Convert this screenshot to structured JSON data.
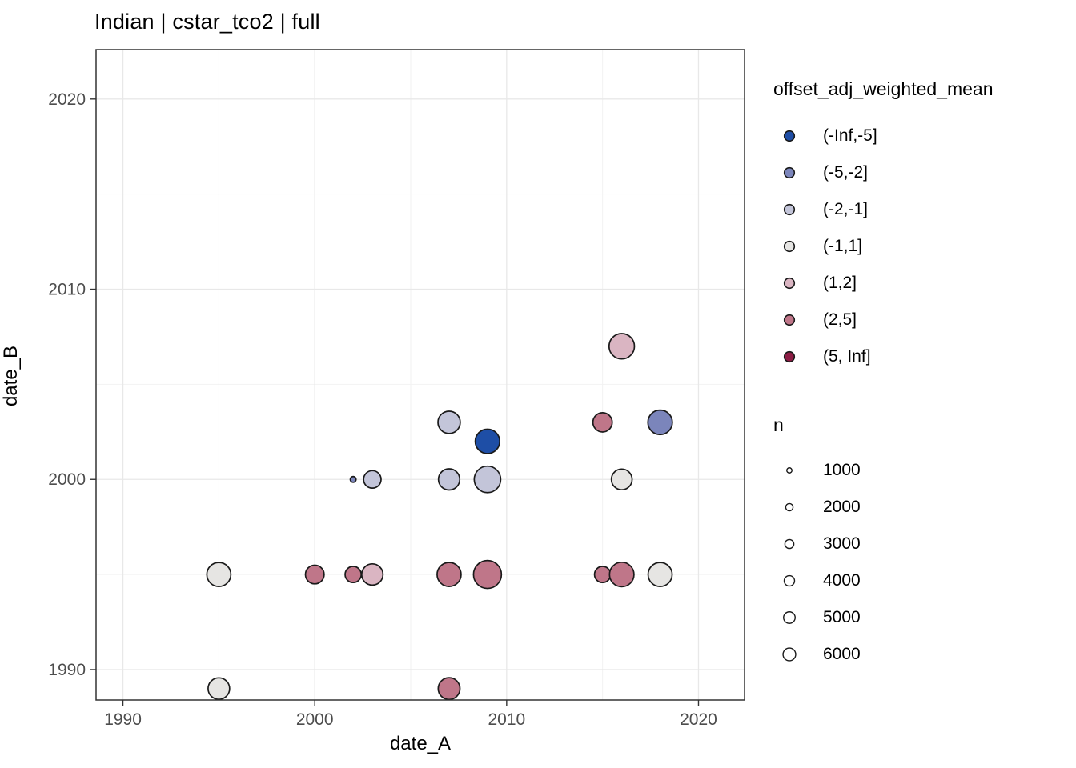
{
  "title": "Indian | cstar_tco2 | full",
  "chart_data": {
    "type": "scatter",
    "title": "Indian | cstar_tco2 | full",
    "xlabel": "date_A",
    "ylabel": "date_B",
    "xlim": [
      1988.6,
      2022.4
    ],
    "ylim": [
      1988.4,
      2022.6
    ],
    "x_major_ticks": [
      1990,
      2000,
      2010,
      2020
    ],
    "y_major_ticks": [
      1990,
      2000,
      2010,
      2020
    ],
    "x_minor_ticks": [
      1995,
      2005,
      2015
    ],
    "y_minor_ticks": [
      1995,
      2005,
      2015
    ],
    "grid": true,
    "legend_position": "right",
    "color_legend": {
      "title": "offset_adj_weighted_mean",
      "bins": [
        {
          "label": "(-Inf,-5]",
          "color": "#1e4ea6"
        },
        {
          "label": "(-5,-2]",
          "color": "#7b85bb"
        },
        {
          "label": "(-2,-1]",
          "color": "#c3c5d9"
        },
        {
          "label": "(-1,1]",
          "color": "#e6e5e3"
        },
        {
          "label": "(1,2]",
          "color": "#dab5c2"
        },
        {
          "label": "(2,5]",
          "color": "#bf7689"
        },
        {
          "label": "(5, Inf]",
          "color": "#8c1c44"
        }
      ]
    },
    "size_legend": {
      "title": "n",
      "values": [
        1000,
        2000,
        3000,
        4000,
        5000,
        6000
      ]
    },
    "points": [
      {
        "date_A": 1995,
        "date_B": 1989,
        "bin": "(-1,1]",
        "n": 4100
      },
      {
        "date_A": 2007,
        "date_B": 1989,
        "bin": "(2,5]",
        "n": 4200
      },
      {
        "date_A": 1995,
        "date_B": 1995,
        "bin": "(-1,1]",
        "n": 5100
      },
      {
        "date_A": 2000,
        "date_B": 1995,
        "bin": "(2,5]",
        "n": 3100
      },
      {
        "date_A": 2002,
        "date_B": 1995,
        "bin": "(2,5]",
        "n": 2300
      },
      {
        "date_A": 2003,
        "date_B": 1995,
        "bin": "(1,2]",
        "n": 4000
      },
      {
        "date_A": 2007,
        "date_B": 1995,
        "bin": "(2,5]",
        "n": 5100
      },
      {
        "date_A": 2009,
        "date_B": 1995,
        "bin": "(2,5]",
        "n": 6900
      },
      {
        "date_A": 2015,
        "date_B": 1995,
        "bin": "(2,5]",
        "n": 2300
      },
      {
        "date_A": 2016,
        "date_B": 1995,
        "bin": "(2,5]",
        "n": 5300
      },
      {
        "date_A": 2018,
        "date_B": 1995,
        "bin": "(-1,1]",
        "n": 5100
      },
      {
        "date_A": 2002,
        "date_B": 2000,
        "bin": "(-5,-2]",
        "n": 300
      },
      {
        "date_A": 2003,
        "date_B": 2000,
        "bin": "(-2,-1]",
        "n": 2700
      },
      {
        "date_A": 2007,
        "date_B": 2000,
        "bin": "(-2,-1]",
        "n": 4000
      },
      {
        "date_A": 2009,
        "date_B": 2000,
        "bin": "(-2,-1]",
        "n": 6200
      },
      {
        "date_A": 2016,
        "date_B": 2000,
        "bin": "(-1,1]",
        "n": 3800
      },
      {
        "date_A": 2009,
        "date_B": 2002,
        "bin": "(-Inf,-5]",
        "n": 5300
      },
      {
        "date_A": 2007,
        "date_B": 2003,
        "bin": "(-2,-1]",
        "n": 4400
      },
      {
        "date_A": 2015,
        "date_B": 2003,
        "bin": "(2,5]",
        "n": 3300
      },
      {
        "date_A": 2018,
        "date_B": 2003,
        "bin": "(-5,-2]",
        "n": 5300
      },
      {
        "date_A": 2016,
        "date_B": 2007,
        "bin": "(1,2]",
        "n": 5700
      }
    ]
  },
  "style": {
    "background": "#ffffff",
    "grid_major": "#e8e8e8",
    "grid_minor": "#f2f2f2",
    "panel_border": "#333333",
    "point_stroke": "#1a1a1a",
    "tick_color": "#333333",
    "tick_label_color": "#4d4d4d",
    "text_color": "#000000"
  }
}
